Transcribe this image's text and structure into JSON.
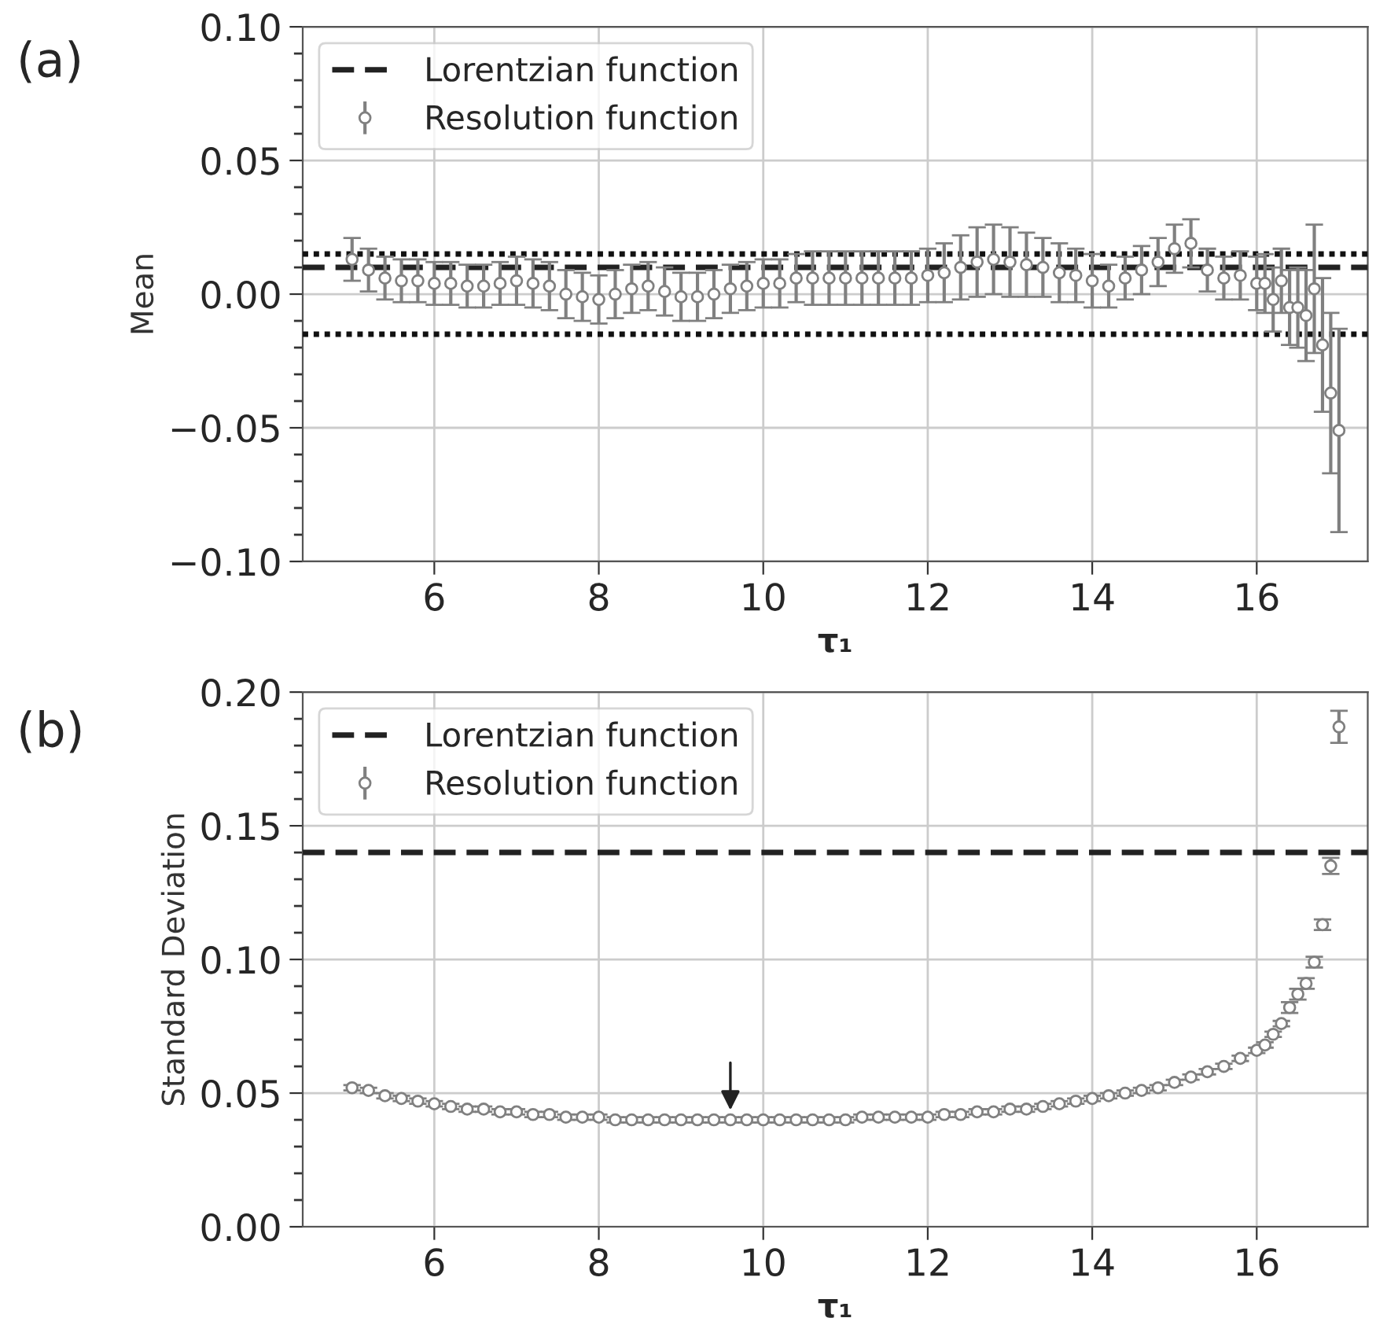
{
  "chart_data": [
    {
      "type": "scatter",
      "xlabel": "τ₁",
      "ylabel": "Mean",
      "annotations": [
        "(a)"
      ],
      "xlim": [
        4.4,
        17.35
      ],
      "xticks": [
        6,
        8,
        10,
        12,
        14,
        16
      ],
      "ylim": [
        -0.1,
        0.1
      ],
      "yticks": [
        {
          "value": -0.1,
          "label": "−0.10"
        },
        {
          "value": -0.05,
          "label": "−0.05"
        },
        {
          "value": 0.0,
          "label": "0.00"
        },
        {
          "value": 0.05,
          "label": "0.05"
        },
        {
          "value": 0.1,
          "label": "0.10"
        }
      ],
      "grid": true,
      "legend": "top left",
      "marker": "circle",
      "ref_lines": [
        {
          "axis": "y",
          "value": 0.01,
          "label": "Lorentzian function",
          "line_style": "dashed",
          "color": "#222222"
        },
        {
          "axis": "y",
          "value": 0.015,
          "line_style": "dotted",
          "color": "#111111"
        },
        {
          "axis": "y",
          "value": -0.015,
          "line_style": "dotted",
          "color": "#111111"
        }
      ],
      "series": [
        {
          "name": "Resolution function",
          "color": "#808080",
          "x": [
            5.0,
            5.2,
            5.4,
            5.6,
            5.8,
            6.0,
            6.2,
            6.4,
            6.6,
            6.8,
            7.0,
            7.2,
            7.4,
            7.6,
            7.8,
            8.0,
            8.2,
            8.4,
            8.6,
            8.8,
            9.0,
            9.2,
            9.4,
            9.6,
            9.8,
            10.0,
            10.2,
            10.4,
            10.6,
            10.8,
            11.0,
            11.2,
            11.4,
            11.6,
            11.8,
            12.0,
            12.2,
            12.4,
            12.6,
            12.8,
            13.0,
            13.2,
            13.4,
            13.6,
            13.8,
            14.0,
            14.2,
            14.4,
            14.6,
            14.8,
            15.0,
            15.2,
            15.4,
            15.6,
            15.8,
            16.0,
            16.1,
            16.2,
            16.3,
            16.4,
            16.5,
            16.6,
            16.7,
            16.8,
            16.9,
            17.0
          ],
          "values": [
            0.013,
            0.009,
            0.006,
            0.005,
            0.005,
            0.004,
            0.004,
            0.003,
            0.003,
            0.004,
            0.005,
            0.004,
            0.003,
            0.0,
            -0.001,
            -0.002,
            0.0,
            0.002,
            0.003,
            0.001,
            -0.001,
            -0.001,
            0.0,
            0.002,
            0.003,
            0.004,
            0.004,
            0.006,
            0.006,
            0.006,
            0.006,
            0.006,
            0.006,
            0.006,
            0.006,
            0.007,
            0.008,
            0.01,
            0.012,
            0.013,
            0.012,
            0.011,
            0.01,
            0.008,
            0.007,
            0.005,
            0.003,
            0.006,
            0.009,
            0.012,
            0.017,
            0.019,
            0.009,
            0.006,
            0.007,
            0.004,
            0.004,
            -0.002,
            0.005,
            -0.005,
            -0.005,
            -0.008,
            0.002,
            -0.019,
            -0.037,
            -0.051
          ],
          "errors": [
            0.008,
            0.008,
            0.008,
            0.008,
            0.008,
            0.008,
            0.008,
            0.008,
            0.008,
            0.008,
            0.009,
            0.009,
            0.009,
            0.009,
            0.009,
            0.009,
            0.009,
            0.009,
            0.009,
            0.009,
            0.009,
            0.009,
            0.009,
            0.009,
            0.009,
            0.009,
            0.009,
            0.009,
            0.01,
            0.01,
            0.01,
            0.01,
            0.01,
            0.01,
            0.01,
            0.01,
            0.011,
            0.012,
            0.013,
            0.013,
            0.013,
            0.012,
            0.011,
            0.011,
            0.01,
            0.01,
            0.008,
            0.008,
            0.009,
            0.009,
            0.009,
            0.009,
            0.008,
            0.008,
            0.009,
            0.01,
            0.011,
            0.012,
            0.012,
            0.014,
            0.015,
            0.017,
            0.024,
            0.025,
            0.03,
            0.038
          ]
        }
      ]
    },
    {
      "type": "scatter",
      "xlabel": "τ₁",
      "ylabel": "Standard Deviation",
      "annotations": [
        "(b)"
      ],
      "xlim": [
        4.4,
        17.35
      ],
      "xticks": [
        6,
        8,
        10,
        12,
        14,
        16
      ],
      "ylim": [
        0.0,
        0.2
      ],
      "yticks": [
        {
          "value": 0.0,
          "label": "0.00"
        },
        {
          "value": 0.05,
          "label": "0.05"
        },
        {
          "value": 0.1,
          "label": "0.10"
        },
        {
          "value": 0.15,
          "label": "0.15"
        },
        {
          "value": 0.2,
          "label": "0.20"
        }
      ],
      "grid": true,
      "legend": "top left",
      "marker": "circle",
      "ref_lines": [
        {
          "axis": "y",
          "value": 0.14,
          "label": "Lorentzian function",
          "line_style": "dashed",
          "color": "#222222"
        }
      ],
      "series": [
        {
          "name": "Resolution function",
          "color": "#808080",
          "x": [
            5.0,
            5.2,
            5.4,
            5.6,
            5.8,
            6.0,
            6.2,
            6.4,
            6.6,
            6.8,
            7.0,
            7.2,
            7.4,
            7.6,
            7.8,
            8.0,
            8.2,
            8.4,
            8.6,
            8.8,
            9.0,
            9.2,
            9.4,
            9.6,
            9.8,
            10.0,
            10.2,
            10.4,
            10.6,
            10.8,
            11.0,
            11.2,
            11.4,
            11.6,
            11.8,
            12.0,
            12.2,
            12.4,
            12.6,
            12.8,
            13.0,
            13.2,
            13.4,
            13.6,
            13.8,
            14.0,
            14.2,
            14.4,
            14.6,
            14.8,
            15.0,
            15.2,
            15.4,
            15.6,
            15.8,
            16.0,
            16.1,
            16.2,
            16.3,
            16.4,
            16.5,
            16.6,
            16.7,
            16.8,
            16.9,
            17.0
          ],
          "values": [
            0.052,
            0.051,
            0.049,
            0.048,
            0.047,
            0.046,
            0.045,
            0.044,
            0.044,
            0.043,
            0.043,
            0.042,
            0.042,
            0.041,
            0.041,
            0.041,
            0.04,
            0.04,
            0.04,
            0.04,
            0.04,
            0.04,
            0.04,
            0.04,
            0.04,
            0.04,
            0.04,
            0.04,
            0.04,
            0.04,
            0.04,
            0.041,
            0.041,
            0.041,
            0.041,
            0.041,
            0.042,
            0.042,
            0.043,
            0.043,
            0.044,
            0.044,
            0.045,
            0.046,
            0.047,
            0.048,
            0.049,
            0.05,
            0.051,
            0.052,
            0.054,
            0.056,
            0.058,
            0.06,
            0.063,
            0.066,
            0.068,
            0.072,
            0.076,
            0.082,
            0.087,
            0.091,
            0.099,
            0.113,
            0.135,
            0.187
          ],
          "errors": [
            0.001,
            0.001,
            0.001,
            0.001,
            0.001,
            0.001,
            0.001,
            0.001,
            0.001,
            0.001,
            0.001,
            0.001,
            0.001,
            0.001,
            0.001,
            0.001,
            0.001,
            0.001,
            0.001,
            0.001,
            0.001,
            0.001,
            0.001,
            0.001,
            0.001,
            0.001,
            0.001,
            0.001,
            0.001,
            0.001,
            0.001,
            0.001,
            0.001,
            0.001,
            0.001,
            0.001,
            0.001,
            0.001,
            0.001,
            0.001,
            0.001,
            0.001,
            0.001,
            0.001,
            0.001,
            0.001,
            0.001,
            0.001,
            0.001,
            0.001,
            0.001,
            0.001,
            0.001,
            0.001,
            0.001,
            0.001,
            0.001,
            0.001,
            0.001,
            0.002,
            0.002,
            0.002,
            0.002,
            0.002,
            0.003,
            0.006
          ]
        }
      ]
    }
  ]
}
